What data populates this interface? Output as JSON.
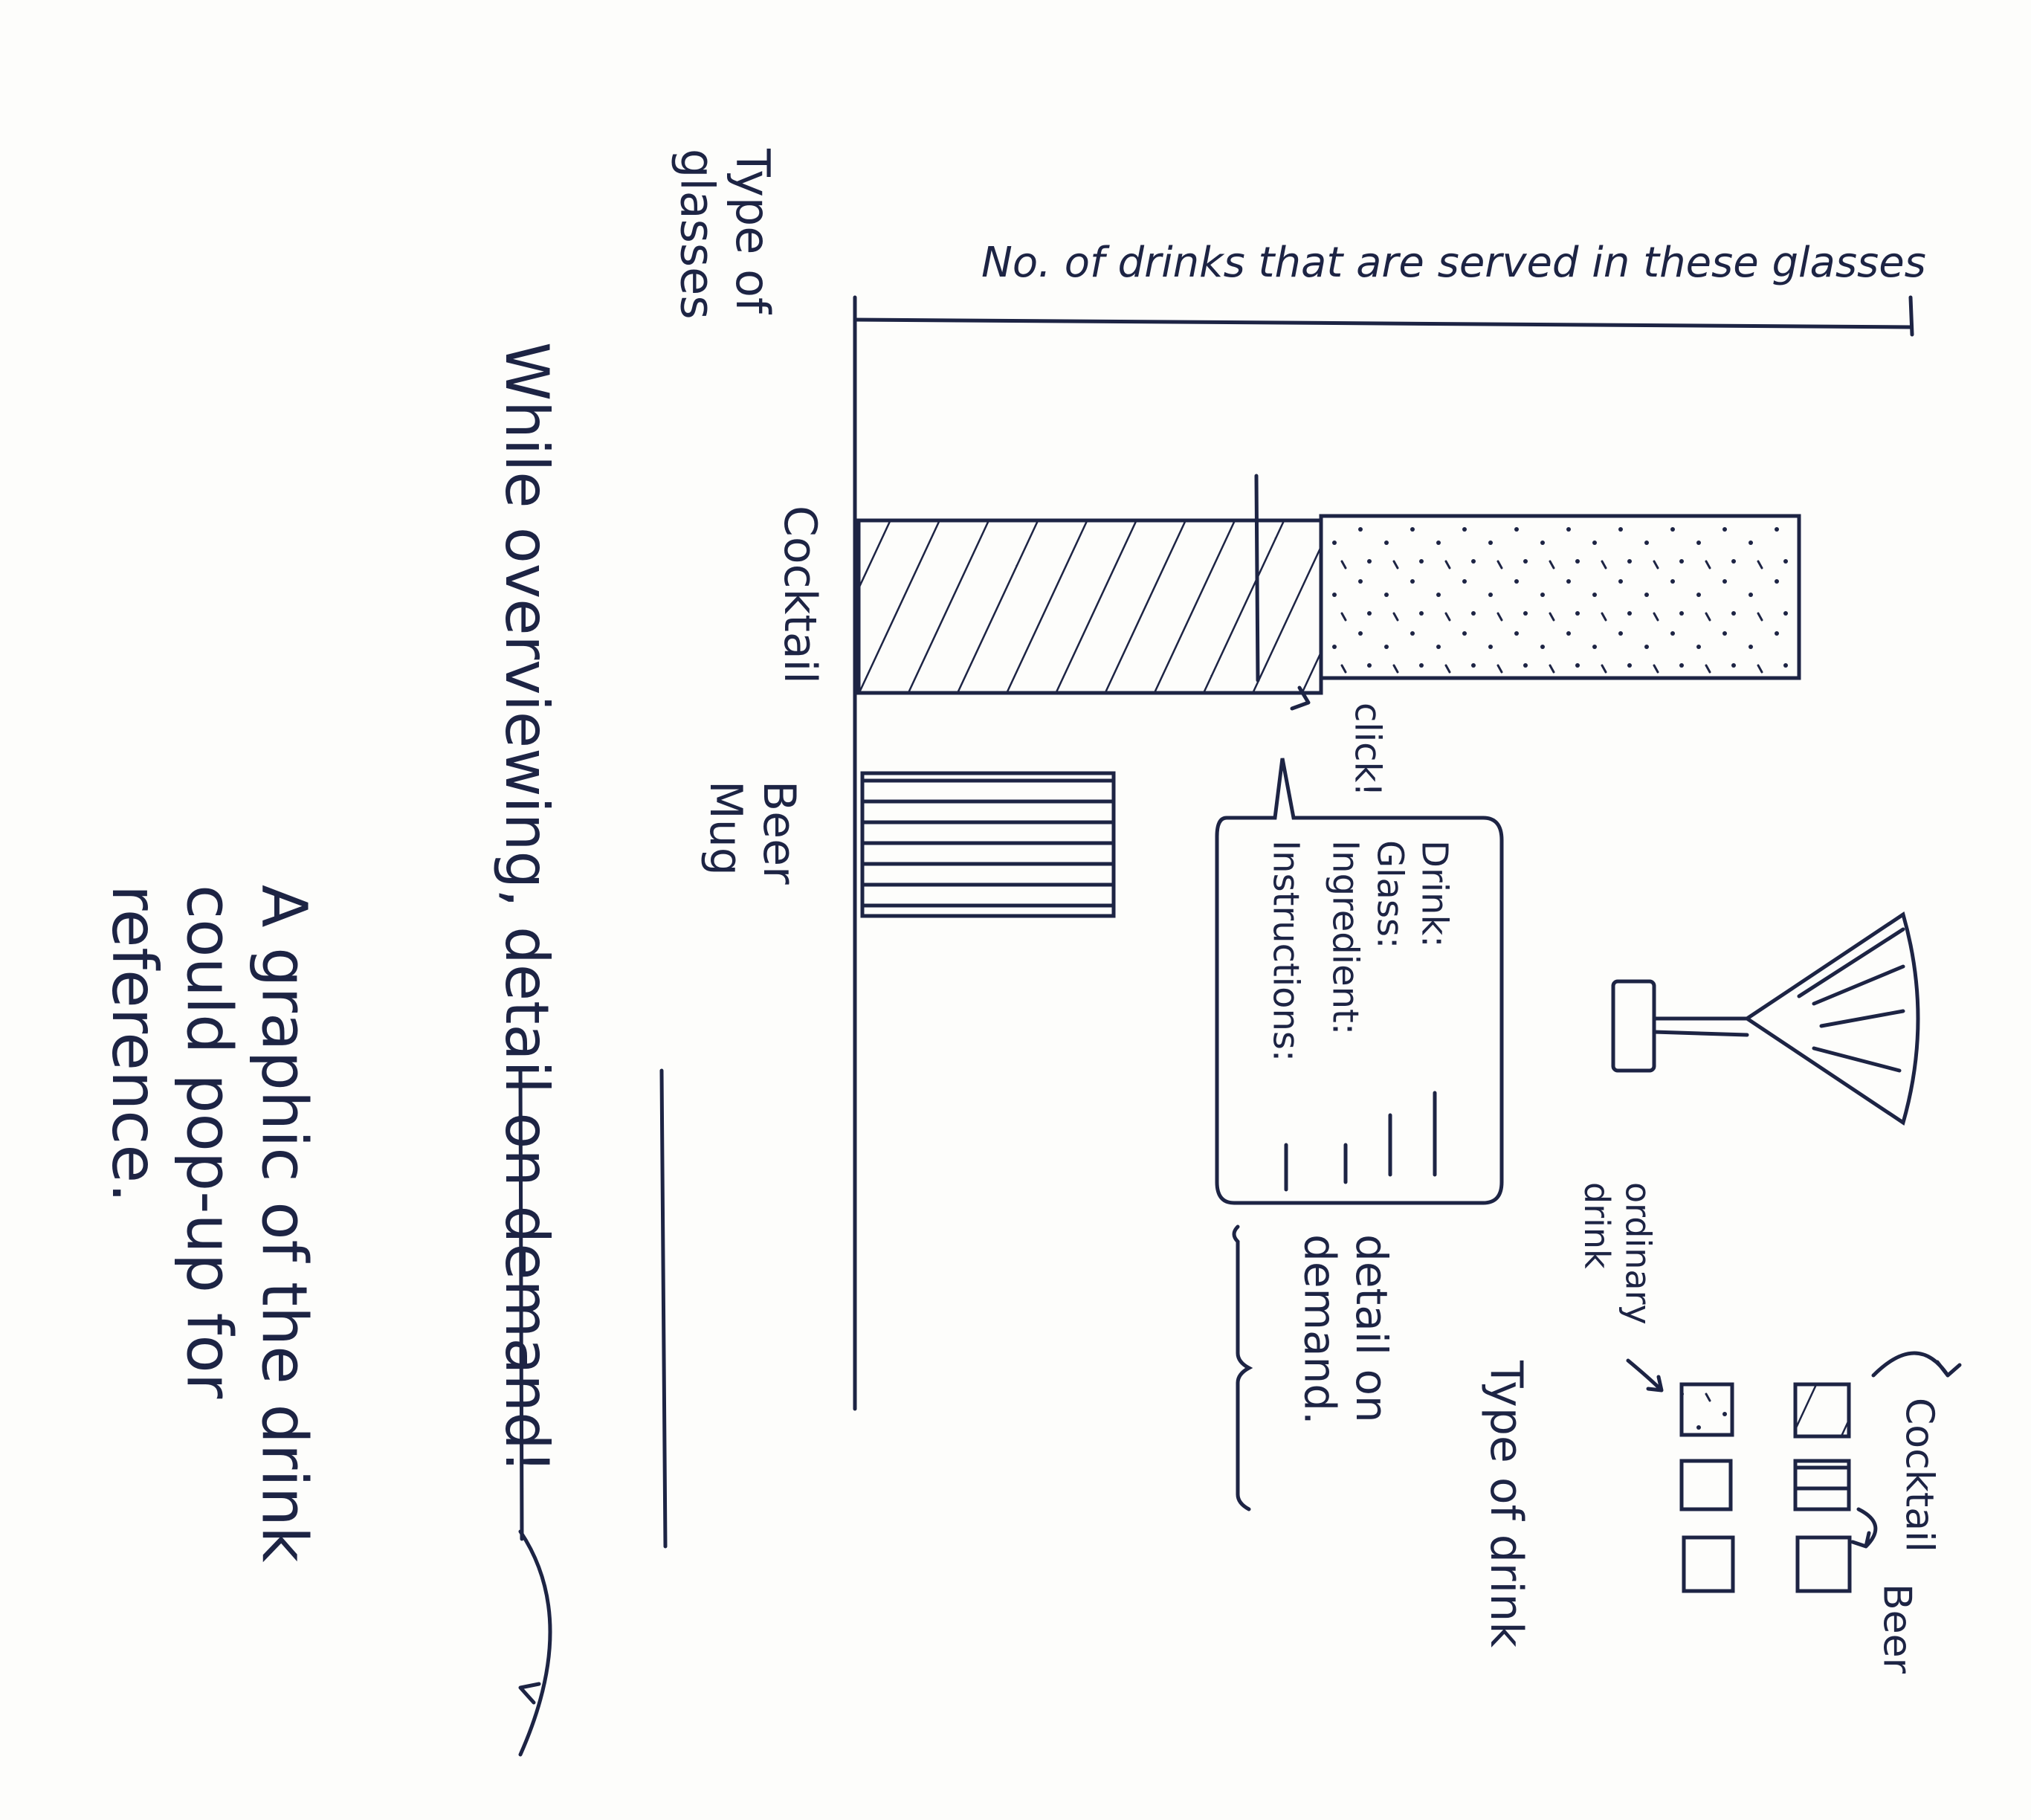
{
  "y_axis_label": "Type of glasses",
  "x_axis_label": "No. of drinks that are served in these glasses",
  "bars": [
    {
      "label": "Cocktail"
    },
    {
      "label": "Beer Mug"
    }
  ],
  "click_label": "click!",
  "popup": {
    "fields": [
      "Drink:",
      "Glass:",
      "Ingredient:",
      "Instructions:"
    ]
  },
  "popup_caption": "detail on demand.",
  "legend": {
    "title": "Type of drink",
    "items": [
      "Cocktail",
      "Beer",
      "ordinary drink"
    ]
  },
  "notes": [
    "While overviewing, detail on demand!",
    "A graphic of the drink could pop-up for reference."
  ]
}
